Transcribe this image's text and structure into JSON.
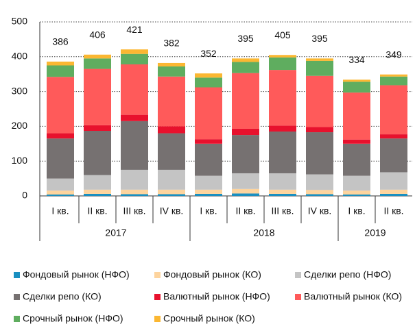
{
  "chart_data": {
    "type": "stacked_bar",
    "category_groups": [
      {
        "label": "2017",
        "categories": [
          "I кв.",
          "II кв.",
          "III кв.",
          "IV кв."
        ]
      },
      {
        "label": "2018",
        "categories": [
          "I кв.",
          "II кв.",
          "III кв.",
          "IV кв."
        ]
      },
      {
        "label": "2019",
        "categories": [
          "I кв.",
          "II кв."
        ]
      }
    ],
    "totals": [
      386,
      406,
      421,
      382,
      352,
      395,
      405,
      395,
      334,
      349
    ],
    "series": [
      {
        "name": "Фондовый рынок (НФО)",
        "color": "#1a8fc0",
        "values": [
          4,
          6,
          5,
          5,
          6,
          7,
          6,
          5,
          4,
          6
        ]
      },
      {
        "name": "Фондовый рынок (КО)",
        "color": "#fdd49e",
        "values": [
          11,
          12,
          13,
          13,
          12,
          13,
          12,
          12,
          11,
          12
        ]
      },
      {
        "name": "Сделки репо (НФО)",
        "color": "#c4c4c4",
        "values": [
          35,
          42,
          57,
          57,
          40,
          45,
          47,
          45,
          43,
          50
        ]
      },
      {
        "name": "Сделки репо (КО)",
        "color": "#767171",
        "values": [
          115,
          127,
          140,
          105,
          92,
          110,
          120,
          121,
          92,
          97
        ]
      },
      {
        "name": "Валютный рынок (НФО)",
        "color": "#e8112d",
        "values": [
          15,
          16,
          18,
          20,
          13,
          18,
          17,
          15,
          12,
          12
        ]
      },
      {
        "name": "Валютный рынок (КО)",
        "color": "#ff5a5a",
        "values": [
          162,
          162,
          145,
          143,
          149,
          160,
          160,
          147,
          135,
          141
        ]
      },
      {
        "name": "Срочный рынок (НФО)",
        "color": "#5fad5f",
        "values": [
          33,
          30,
          30,
          29,
          28,
          32,
          36,
          43,
          31,
          25
        ]
      },
      {
        "name": "Срочный рынок (КО)",
        "color": "#fbb732",
        "values": [
          11,
          11,
          13,
          10,
          12,
          10,
          7,
          7,
          6,
          6
        ]
      }
    ],
    "ylim": [
      0,
      500
    ],
    "yticks": [
      0,
      100,
      200,
      300,
      400,
      500
    ],
    "grid": true
  }
}
